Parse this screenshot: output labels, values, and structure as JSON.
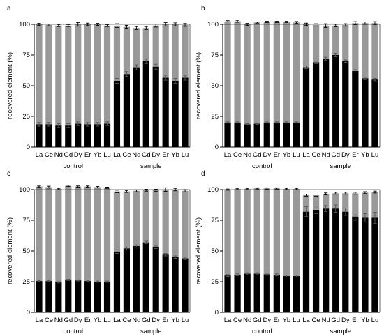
{
  "colors": {
    "lower_bar": "#000000",
    "upper_bar": "#999999",
    "axis": "#000000",
    "error_bar": "#000000",
    "background": "#ffffff"
  },
  "chart_data": [
    {
      "panel": "a",
      "type": "bar",
      "stacked": true,
      "ylabel": "recovered element (%)",
      "ylim": [
        0,
        100
      ],
      "yticks": [
        "0",
        "25",
        "50",
        "75",
        "100"
      ],
      "categories": [
        "La",
        "Ce",
        "Nd",
        "Gd",
        "Dy",
        "Er",
        "Yb",
        "Lu",
        "La",
        "Ce",
        "Nd",
        "Gd",
        "Dy",
        "Er",
        "Yb",
        "Lu"
      ],
      "groups": [
        {
          "label": "control",
          "from": 0,
          "to": 7
        },
        {
          "label": "sample",
          "from": 8,
          "to": 15
        }
      ],
      "series": [
        {
          "values": [
            18.5,
            18.5,
            17.5,
            17.5,
            19,
            18.5,
            18.5,
            19,
            54,
            59.5,
            65,
            70,
            65.5,
            56.5,
            54,
            56.5
          ],
          "errors": [
            1.5,
            1.5,
            1.5,
            1.5,
            1.5,
            1.5,
            1.5,
            1.5,
            2,
            2,
            2,
            2,
            2,
            2,
            2,
            2
          ]
        },
        {
          "values": [
            81.5,
            81,
            81.5,
            81.5,
            81,
            81.5,
            81.5,
            80,
            45,
            38.5,
            32,
            27,
            33.5,
            43.5,
            46,
            43
          ],
          "errors": [
            0.8,
            0.8,
            0.8,
            0.8,
            1.5,
            1.0,
            0.8,
            0.8,
            1.5,
            1.2,
            1.2,
            1.2,
            1.2,
            1.5,
            1.2,
            1.2
          ]
        }
      ]
    },
    {
      "panel": "b",
      "type": "bar",
      "stacked": true,
      "ylabel": "recovered element (%)",
      "ylim": [
        0,
        100
      ],
      "yticks": [
        "0",
        "25",
        "50",
        "75",
        "100"
      ],
      "categories": [
        "La",
        "Ce",
        "Nd",
        "Gd",
        "Dy",
        "Er",
        "Yb",
        "Lu",
        "La",
        "Ce",
        "Nd",
        "Gd",
        "Dy",
        "Er",
        "Yb",
        "Lu"
      ],
      "groups": [
        {
          "label": "control",
          "from": 0,
          "to": 7
        },
        {
          "label": "sample",
          "from": 8,
          "to": 15
        }
      ],
      "series": [
        {
          "values": [
            20,
            20,
            18.5,
            19,
            20,
            20,
            20,
            20,
            65,
            69,
            72,
            75,
            70,
            62,
            56,
            55
          ],
          "errors": [
            0.5,
            0.5,
            0.5,
            0.5,
            0.5,
            0.5,
            0.5,
            0.5,
            1.2,
            1.0,
            1.2,
            1.5,
            1.0,
            1.0,
            1.0,
            1.0
          ]
        },
        {
          "values": [
            82.5,
            82.5,
            81.5,
            82.5,
            82,
            82,
            82,
            81.5,
            35,
            30.5,
            27,
            24,
            29.5,
            39,
            45,
            46
          ],
          "errors": [
            0.5,
            0.8,
            0.8,
            0.5,
            0.5,
            0.5,
            0.5,
            0.8,
            1.0,
            1.0,
            1.5,
            1.0,
            1.0,
            1.2,
            1.0,
            1.2
          ]
        }
      ]
    },
    {
      "panel": "c",
      "type": "bar",
      "stacked": true,
      "ylabel": "recovered element (%)",
      "ylim": [
        0,
        100
      ],
      "yticks": [
        "0",
        "25",
        "50",
        "75",
        "100"
      ],
      "categories": [
        "La",
        "Ce",
        "Nd",
        "Gd",
        "Dy",
        "Er",
        "Yb",
        "Lu",
        "La",
        "Ce",
        "Nd",
        "Gd",
        "Dy",
        "Er",
        "Yb",
        "Lu"
      ],
      "groups": [
        {
          "label": "control",
          "from": 0,
          "to": 7
        },
        {
          "label": "sample",
          "from": 8,
          "to": 15
        }
      ],
      "series": [
        {
          "values": [
            25.5,
            25.5,
            24.5,
            26.5,
            26,
            25.5,
            25,
            25,
            49.5,
            52,
            54,
            57,
            53,
            47,
            45,
            44
          ],
          "errors": [
            0.5,
            0.5,
            0.5,
            0.5,
            0.5,
            0.5,
            0.5,
            0.5,
            1.5,
            1.2,
            1.0,
            1.0,
            1.0,
            1.0,
            1.0,
            1.0
          ]
        },
        {
          "values": [
            77,
            76.5,
            76,
            76.5,
            76.5,
            77,
            77,
            76.5,
            49,
            46.5,
            45,
            42.5,
            46.5,
            53,
            55,
            55
          ],
          "errors": [
            0.5,
            0.8,
            0.5,
            0.5,
            0.5,
            0.5,
            0.5,
            0.5,
            1.0,
            0.8,
            0.8,
            0.8,
            0.8,
            1.5,
            1.0,
            1.0
          ]
        }
      ]
    },
    {
      "panel": "d",
      "type": "bar",
      "stacked": true,
      "ylabel": "recovered element (%)",
      "ylim": [
        0,
        100
      ],
      "yticks": [
        "0",
        "25",
        "50",
        "75",
        "100"
      ],
      "categories": [
        "La",
        "Ce",
        "Nd",
        "Gd",
        "Dy",
        "Er",
        "Yb",
        "Lu",
        "La",
        "Ce",
        "Nd",
        "Gd",
        "Dy",
        "Er",
        "Yb",
        "Lu"
      ],
      "groups": [
        {
          "label": "control",
          "from": 0,
          "to": 7
        },
        {
          "label": "sample",
          "from": 8,
          "to": 15
        }
      ],
      "series": [
        {
          "values": [
            30,
            30.5,
            31.5,
            31.5,
            31,
            30.5,
            29.5,
            29.5,
            82,
            83.5,
            84.5,
            84.5,
            82,
            78,
            77,
            77
          ],
          "errors": [
            0.8,
            0.8,
            0.8,
            0.8,
            0.8,
            0.8,
            0.8,
            0.8,
            4.0,
            3.0,
            2.5,
            3.0,
            3.0,
            3.0,
            3.5,
            4.5
          ]
        },
        {
          "values": [
            70,
            70,
            69,
            69.5,
            70,
            70.5,
            71,
            71,
            13.5,
            12,
            12,
            12.5,
            15,
            19,
            20.5,
            21
          ],
          "errors": [
            0.5,
            0.5,
            0.5,
            0.5,
            0.5,
            0.5,
            0.5,
            0.5,
            0.8,
            0.8,
            0.8,
            0.8,
            0.8,
            0.8,
            0.8,
            0.8
          ]
        }
      ]
    }
  ]
}
